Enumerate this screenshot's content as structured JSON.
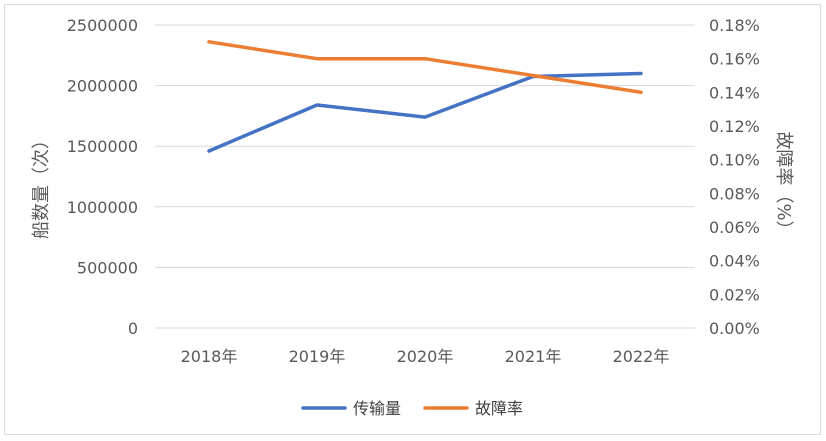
{
  "chart_data": {
    "type": "line",
    "categories": [
      "2018年",
      "2019年",
      "2020年",
      "2021年",
      "2022年"
    ],
    "series": [
      {
        "name": "传输量",
        "axis": "left",
        "color": "#4472C4",
        "values": [
          1460000,
          1840000,
          1740000,
          2075000,
          2100000
        ]
      },
      {
        "name": "故障率",
        "axis": "right",
        "color": "#ED7D31",
        "values": [
          0.0017,
          0.0016,
          0.0016,
          0.0015,
          0.0014
        ]
      }
    ],
    "ylabel_left": "船数量（次）",
    "ylabel_right": "故障率（%）",
    "ylim_left": [
      0,
      2500000
    ],
    "ylim_right": [
      0,
      0.0018
    ],
    "yticks_left": [
      "2500000",
      "2000000",
      "1500000",
      "1000000",
      "500000",
      "0"
    ],
    "yticks_right": [
      "0.18%",
      "0.16%",
      "0.14%",
      "0.12%",
      "0.10%",
      "0.08%",
      "0.06%",
      "0.04%",
      "0.02%",
      "0.00%"
    ],
    "grid": true,
    "legend_position": "bottom"
  }
}
